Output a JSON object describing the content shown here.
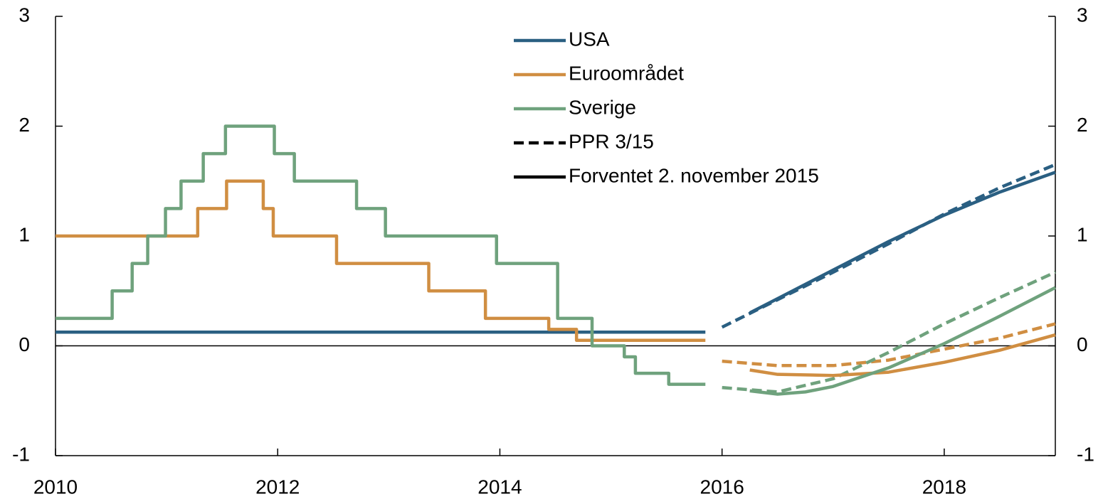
{
  "chart_data": {
    "type": "line",
    "xlim": [
      2010,
      2019
    ],
    "xticks": [
      2010,
      2012,
      2014,
      2016,
      2018
    ],
    "ylim": [
      -1,
      3
    ],
    "yticks": [
      -1,
      0,
      1,
      2,
      3
    ],
    "y2lim": [
      -1,
      3
    ],
    "y2ticks": [
      -1,
      0,
      1,
      2,
      3
    ],
    "zero_line": true,
    "legend": "top",
    "series": [
      {
        "name": "USA",
        "color": "#2a5f82",
        "step": true,
        "x": [
          2010,
          2015.85
        ],
        "values": [
          0.125,
          0.125
        ]
      },
      {
        "name": "Euroområdet",
        "color": "#d08e42",
        "step": true,
        "x": [
          2010,
          2011.28,
          2011.54,
          2011.87,
          2011.96,
          2012.53,
          2013.36,
          2013.87,
          2014.44,
          2014.69,
          2015.85
        ],
        "values": [
          1,
          1.25,
          1.5,
          1.25,
          1,
          0.75,
          0.5,
          0.25,
          0.15,
          0.05,
          0.05
        ]
      },
      {
        "name": "Sverige",
        "color": "#6fa27d",
        "step": true,
        "x": [
          2010,
          2010.51,
          2010.69,
          2010.83,
          2010.99,
          2011.13,
          2011.33,
          2011.53,
          2011.97,
          2012.15,
          2012.71,
          2012.97,
          2013.97,
          2014.52,
          2014.83,
          2015.12,
          2015.22,
          2015.52,
          2015.85
        ],
        "values": [
          0.25,
          0.5,
          0.75,
          1,
          1.25,
          1.5,
          1.75,
          2,
          1.75,
          1.5,
          1.25,
          1,
          0.75,
          0.25,
          0,
          -0.1,
          -0.25,
          -0.35,
          -0.35
        ]
      }
    ],
    "forecasts": [
      {
        "name": "PPR 3/15",
        "dashed": true,
        "color": "#000000",
        "lines": [
          {
            "x": [
              2016,
              2016.5,
              2017,
              2017.5,
              2018,
              2018.5,
              2019
            ],
            "values": [
              0.17,
              0.42,
              0.67,
              0.93,
              1.2,
              1.44,
              1.65
            ]
          },
          {
            "x": [
              2016,
              2016.5,
              2017,
              2017.5,
              2018,
              2018.5,
              2019
            ],
            "values": [
              -0.14,
              -0.18,
              -0.18,
              -0.13,
              -0.03,
              0.07,
              0.2
            ]
          },
          {
            "x": [
              2016,
              2016.5,
              2017,
              2017.5,
              2018,
              2018.5,
              2019
            ],
            "values": [
              -0.38,
              -0.42,
              -0.3,
              -0.06,
              0.2,
              0.44,
              0.67
            ]
          }
        ]
      },
      {
        "name": "Forventet 2. november 2015",
        "dashed": false,
        "color": "#000000",
        "lines": [
          {
            "x": [
              2016.25,
              2016.5,
              2017,
              2017.5,
              2018,
              2018.5,
              2019
            ],
            "values": [
              0.3,
              0.43,
              0.69,
              0.95,
              1.19,
              1.4,
              1.58
            ]
          },
          {
            "x": [
              2016.25,
              2016.5,
              2017,
              2017.5,
              2018,
              2018.5,
              2019
            ],
            "values": [
              -0.22,
              -0.26,
              -0.27,
              -0.24,
              -0.15,
              -0.04,
              0.1
            ]
          },
          {
            "x": [
              2016.25,
              2016.5,
              2016.75,
              2017,
              2017.5,
              2018,
              2018.5,
              2019
            ],
            "values": [
              -0.41,
              -0.44,
              -0.42,
              -0.37,
              -0.2,
              0.02,
              0.27,
              0.53
            ]
          }
        ]
      }
    ]
  }
}
